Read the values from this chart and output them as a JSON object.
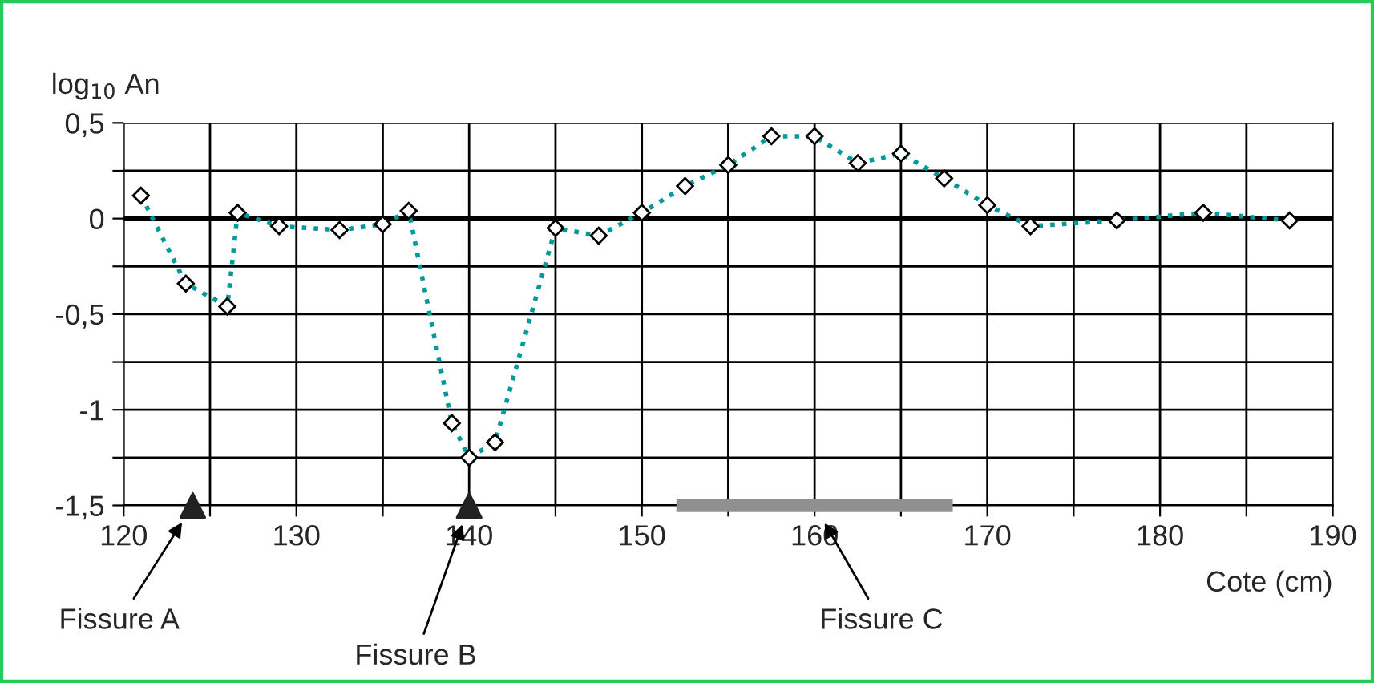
{
  "chart_data": {
    "type": "line",
    "ylabel": "log$_{10}$ An",
    "xlabel": "Cote (cm)",
    "xlim": [
      120,
      190
    ],
    "ylim": [
      -1.5,
      0.5
    ],
    "xticks": [
      120,
      {
        "value": 125,
        "label": null
      },
      130,
      {
        "value": 135,
        "label": null
      },
      140,
      {
        "value": 145,
        "label": null
      },
      150,
      {
        "value": 155,
        "label": null
      },
      160,
      {
        "value": 165,
        "label": null
      },
      170,
      {
        "value": 175,
        "label": null
      },
      180,
      {
        "value": 185,
        "label": null
      },
      190
    ],
    "yticks": [
      {
        "value": -1.5,
        "label": "-1,5"
      },
      {
        "value": -1.25,
        "label": null
      },
      {
        "value": -1,
        "label": "-1"
      },
      {
        "value": -0.75,
        "label": null
      },
      {
        "value": -0.5,
        "label": "-0,5"
      },
      {
        "value": -0.25,
        "label": null
      },
      {
        "value": 0,
        "label": "0"
      },
      {
        "value": 0.25,
        "label": null
      },
      {
        "value": 0.5,
        "label": "0,5"
      }
    ],
    "grid": true,
    "legend": false,
    "series": [
      {
        "color": "#009999",
        "marker": "diamond",
        "line_style": "dotted",
        "x": [
          121,
          123.6,
          126,
          126.6,
          129,
          132.5,
          135,
          136.5,
          139,
          140,
          141.5,
          145,
          147.5,
          150,
          152.5,
          155,
          157.5,
          160,
          162.5,
          165,
          167.5,
          170,
          172.5,
          177.5,
          182.5,
          187.5
        ],
        "values": [
          0.12,
          -0.34,
          -0.46,
          0.03,
          -0.04,
          -0.06,
          -0.03,
          0.04,
          -1.07,
          -1.25,
          -1.17,
          -0.05,
          -0.09,
          0.03,
          0.17,
          0.28,
          0.43,
          0.43,
          0.29,
          0.34,
          0.21,
          0.07,
          -0.04,
          -0.01,
          0.03,
          -0.01
        ]
      },
      {
        "type": "scatter",
        "color": "#222222",
        "marker": "triangle",
        "x": [
          124,
          140
        ],
        "values": [
          -1.5,
          -1.5
        ]
      },
      {
        "color": "#909090",
        "line_style": "solid",
        "x": [
          152,
          168
        ],
        "values": [
          -1.5,
          -1.5
        ]
      }
    ],
    "ref_lines": [
      {
        "axis": "y",
        "value": 0,
        "color": "#000000"
      }
    ],
    "annotations": [
      "Fissure A",
      "Fissure B",
      "Fissure C"
    ]
  }
}
